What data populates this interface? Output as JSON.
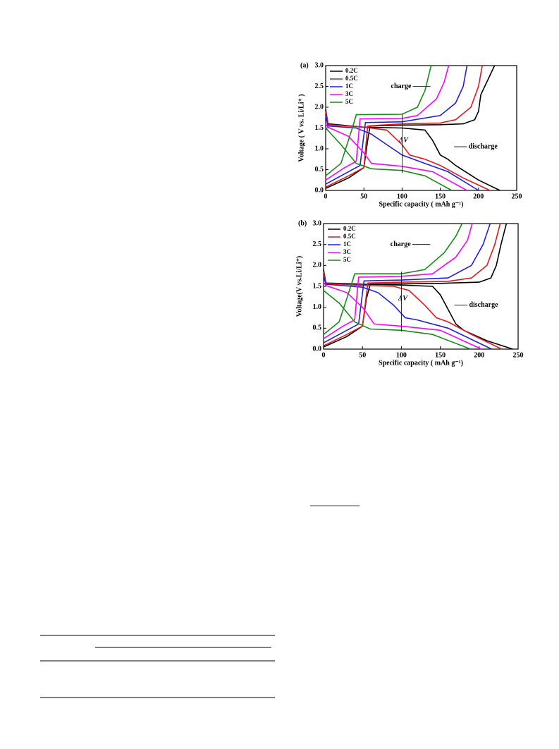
{
  "chart_data": [
    {
      "type": "line",
      "panel_label": "(a)",
      "x_label": "Specific capacity ( mAh g⁻¹)",
      "y_label": "Voltage ( V vs. Li/Li⁺ )",
      "xlim": [
        0,
        250
      ],
      "ylim": [
        0,
        3
      ],
      "xticks": [
        0,
        50,
        100,
        150,
        200,
        250
      ],
      "yticks": [
        {
          "value": 0,
          "label": "0.0"
        },
        {
          "value": 0.5,
          "label": "0.5"
        },
        {
          "value": 1,
          "label": "1.0"
        },
        {
          "value": 1.5,
          "label": "1.5"
        },
        {
          "value": 2,
          "label": "2.0"
        },
        {
          "value": 2.5,
          "label": "2.5"
        },
        {
          "value": 3,
          "label": "3.0"
        }
      ],
      "annotations": {
        "charge": "charge",
        "discharge": "discharge",
        "delta": "ΔV"
      },
      "series": [
        {
          "name": "0.2C",
          "color": "#000000",
          "charge_x": [
            0,
            30,
            50,
            55,
            58,
            100,
            150,
            180,
            195,
            200,
            203,
            221
          ],
          "charge_values": [
            0.05,
            0.3,
            0.55,
            1.2,
            1.55,
            1.57,
            1.58,
            1.6,
            1.7,
            1.9,
            2.3,
            3.0
          ],
          "discharge_x": [
            0,
            3,
            50,
            100,
            130,
            140,
            150,
            160,
            170,
            200,
            228
          ],
          "discharge_values": [
            1.95,
            1.6,
            1.52,
            1.5,
            1.45,
            1.2,
            0.85,
            0.75,
            0.6,
            0.25,
            0
          ]
        },
        {
          "name": "0.5C",
          "color": "#e41a1c",
          "charge_x": [
            0,
            30,
            50,
            55,
            100,
            150,
            170,
            190,
            200,
            205
          ],
          "charge_values": [
            0.08,
            0.35,
            0.55,
            1.55,
            1.6,
            1.62,
            1.7,
            2.0,
            2.5,
            3.0
          ],
          "discharge_x": [
            0,
            3,
            50,
            80,
            100,
            110,
            130,
            150,
            180,
            215
          ],
          "discharge_values": [
            1.9,
            1.58,
            1.52,
            1.45,
            1.1,
            0.85,
            0.75,
            0.6,
            0.3,
            0
          ]
        },
        {
          "name": "1C",
          "color": "#1f1fe0",
          "charge_x": [
            0,
            30,
            45,
            52,
            100,
            150,
            170,
            180,
            185
          ],
          "charge_values": [
            0.15,
            0.45,
            0.6,
            1.63,
            1.65,
            1.8,
            2.1,
            2.5,
            3.0
          ],
          "discharge_x": [
            0,
            3,
            40,
            60,
            80,
            100,
            130,
            160,
            200
          ],
          "discharge_values": [
            1.8,
            1.55,
            1.5,
            1.35,
            1.1,
            0.85,
            0.65,
            0.45,
            0
          ]
        },
        {
          "name": "3C",
          "color": "#ff00ff",
          "charge_x": [
            0,
            25,
            40,
            45,
            100,
            120,
            145,
            155,
            161
          ],
          "charge_values": [
            0.25,
            0.55,
            0.7,
            1.72,
            1.73,
            1.8,
            2.2,
            2.6,
            3.0
          ],
          "discharge_x": [
            0,
            3,
            30,
            50,
            60,
            100,
            140,
            185
          ],
          "discharge_values": [
            1.6,
            1.52,
            1.3,
            0.9,
            0.65,
            0.58,
            0.45,
            0
          ]
        },
        {
          "name": "5C",
          "color": "#1a8a1a",
          "charge_x": [
            0,
            20,
            35,
            40,
            100,
            120,
            130,
            138
          ],
          "charge_values": [
            0.35,
            0.65,
            1.5,
            1.82,
            1.83,
            2.0,
            2.4,
            3.0
          ],
          "discharge_x": [
            0,
            20,
            40,
            60,
            100,
            130,
            165
          ],
          "discharge_values": [
            1.5,
            1.1,
            0.65,
            0.52,
            0.48,
            0.35,
            0
          ]
        }
      ]
    },
    {
      "type": "line",
      "panel_label": "(b)",
      "x_label": "Specific capacity ( mAh g⁻¹)",
      "y_label": "Voltage(V vs.Li/Li⁺)",
      "xlim": [
        0,
        250
      ],
      "ylim": [
        0,
        3
      ],
      "xticks": [
        0,
        50,
        100,
        150,
        200,
        250
      ],
      "yticks": [
        {
          "value": 0,
          "label": "0.0"
        },
        {
          "value": 0.5,
          "label": "0.5"
        },
        {
          "value": 1,
          "label": "1.0"
        },
        {
          "value": 1.5,
          "label": "1.5"
        },
        {
          "value": 2,
          "label": "2.0"
        },
        {
          "value": 2.5,
          "label": "2.5"
        },
        {
          "value": 3,
          "label": "3.0"
        }
      ],
      "annotations": {
        "charge": "charge",
        "discharge": "discharge",
        "delta": "ΔV"
      },
      "series": [
        {
          "name": "0.2C",
          "color": "#000000",
          "charge_x": [
            0,
            30,
            50,
            55,
            60,
            100,
            150,
            200,
            215,
            222,
            228,
            235
          ],
          "charge_values": [
            0.05,
            0.3,
            0.55,
            1.2,
            1.55,
            1.56,
            1.57,
            1.6,
            1.7,
            2.0,
            2.5,
            3.0
          ],
          "discharge_x": [
            0,
            3,
            50,
            100,
            140,
            150,
            160,
            170,
            180,
            210,
            243
          ],
          "discharge_values": [
            1.9,
            1.58,
            1.55,
            1.53,
            1.5,
            1.3,
            0.95,
            0.6,
            0.45,
            0.2,
            0
          ]
        },
        {
          "name": "0.5C",
          "color": "#e41a1c",
          "charge_x": [
            0,
            30,
            50,
            57,
            100,
            160,
            190,
            210,
            220,
            227
          ],
          "charge_values": [
            0.08,
            0.35,
            0.55,
            1.58,
            1.6,
            1.62,
            1.7,
            2.0,
            2.5,
            3.0
          ],
          "discharge_x": [
            0,
            3,
            50,
            90,
            110,
            130,
            145,
            160,
            190,
            229
          ],
          "discharge_values": [
            1.85,
            1.57,
            1.52,
            1.5,
            1.4,
            1.05,
            0.75,
            0.65,
            0.35,
            0
          ]
        },
        {
          "name": "1C",
          "color": "#1f1fe0",
          "charge_x": [
            0,
            30,
            45,
            52,
            100,
            160,
            190,
            205,
            214
          ],
          "charge_values": [
            0.15,
            0.45,
            0.6,
            1.63,
            1.65,
            1.7,
            2.0,
            2.5,
            3.0
          ],
          "discharge_x": [
            0,
            3,
            50,
            70,
            90,
            105,
            120,
            160,
            216
          ],
          "discharge_values": [
            1.75,
            1.55,
            1.48,
            1.35,
            1.05,
            0.75,
            0.7,
            0.5,
            0
          ]
        },
        {
          "name": "3C",
          "color": "#ff00ff",
          "charge_x": [
            0,
            25,
            40,
            45,
            100,
            140,
            170,
            185,
            191
          ],
          "charge_values": [
            0.25,
            0.55,
            0.7,
            1.72,
            1.74,
            1.8,
            2.2,
            2.6,
            3.0
          ],
          "discharge_x": [
            0,
            3,
            30,
            50,
            65,
            100,
            150,
            203
          ],
          "discharge_values": [
            1.6,
            1.52,
            1.35,
            1.0,
            0.6,
            0.55,
            0.45,
            0
          ]
        },
        {
          "name": "5C",
          "color": "#1a8a1a",
          "charge_x": [
            0,
            20,
            35,
            40,
            100,
            130,
            155,
            170,
            178
          ],
          "charge_values": [
            0.35,
            0.65,
            1.5,
            1.8,
            1.8,
            1.9,
            2.3,
            2.7,
            3.0
          ],
          "discharge_x": [
            0,
            20,
            40,
            60,
            100,
            140,
            189
          ],
          "discharge_values": [
            1.4,
            1.1,
            0.65,
            0.48,
            0.45,
            0.35,
            0
          ]
        }
      ]
    }
  ]
}
